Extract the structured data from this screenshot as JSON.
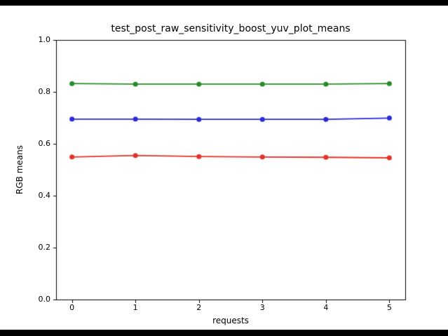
{
  "frame": {
    "background": "#ffffff",
    "letterbox_color": "#000000"
  },
  "chart_data": {
    "type": "line",
    "title": "test_post_raw_sensitivity_boost_yuv_plot_means",
    "xlabel": "requests",
    "ylabel": "RGB means",
    "x": [
      0,
      1,
      2,
      3,
      4,
      5
    ],
    "xlim": [
      -0.25,
      5.25
    ],
    "ylim": [
      0.0,
      1.0
    ],
    "xticks": [
      0,
      1,
      2,
      3,
      4,
      5
    ],
    "xtick_labels": [
      "0",
      "1",
      "2",
      "3",
      "4",
      "5"
    ],
    "yticks": [
      0.0,
      0.2,
      0.4,
      0.6,
      0.8,
      1.0
    ],
    "ytick_labels": [
      "0.0",
      "0.2",
      "0.4",
      "0.6",
      "0.8",
      "1.0"
    ],
    "grid": false,
    "legend": null,
    "marker": "circle",
    "marker_size": 7,
    "line_width": 1.8,
    "series": [
      {
        "name": "green",
        "color": "#2a8a2a",
        "values": [
          0.832,
          0.83,
          0.83,
          0.83,
          0.83,
          0.832
        ]
      },
      {
        "name": "blue",
        "color": "#2a2ad8",
        "values": [
          0.695,
          0.695,
          0.694,
          0.694,
          0.694,
          0.699
        ]
      },
      {
        "name": "red",
        "color": "#e23328",
        "values": [
          0.549,
          0.555,
          0.551,
          0.549,
          0.548,
          0.546
        ]
      }
    ]
  }
}
